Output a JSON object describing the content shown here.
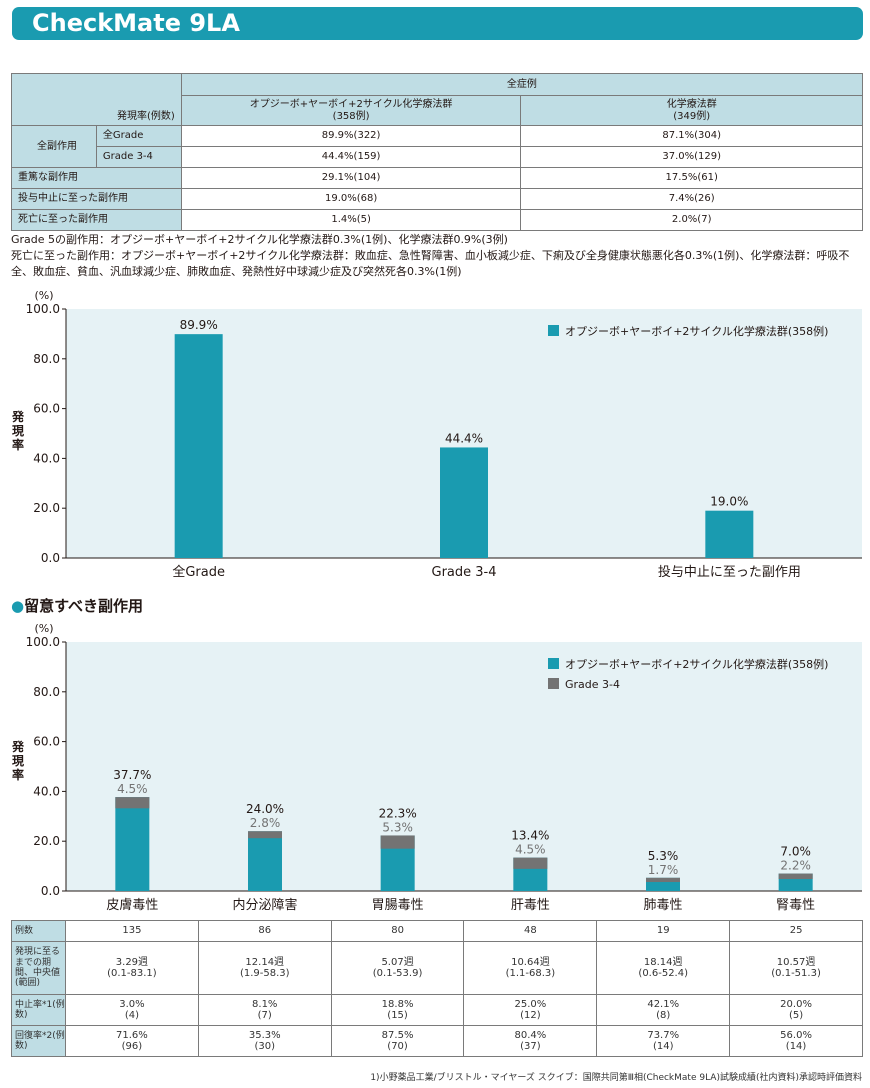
{
  "title": "CheckMate 9LA",
  "table1": {
    "header_group": "全症例",
    "header_rate": "発現率(例数)",
    "col1_name": "オプジーボ+ヤーボイ+2サイクル化学療法群",
    "col1_n": "(358例)",
    "col2_name": "化学療法群",
    "col2_n": "(349例)",
    "group_all": "全副作用",
    "rows": [
      {
        "label": "全Grade",
        "v1": "89.9%(322)",
        "v2": "87.1%(304)"
      },
      {
        "label": "Grade 3-4",
        "v1": "44.4%(159)",
        "v2": "37.0%(129)"
      },
      {
        "label": "重篤な副作用",
        "v1": "29.1%(104)",
        "v2": "17.5%(61)"
      },
      {
        "label": "投与中止に至った副作用",
        "v1": "19.0%(68)",
        "v2": "7.4%(26)"
      },
      {
        "label": "死亡に至った副作用",
        "v1": "1.4%(5)",
        "v2": "2.0%(7)"
      }
    ]
  },
  "notes": [
    "Grade 5の副作用：オプジーボ+ヤーボイ+2サイクル化学療法群0.3%(1例)、化学療法群0.9%(3例)",
    "死亡に至った副作用：オプジーボ+ヤーボイ+2サイクル化学療法群：敗血症、急性腎障害、血小板減少症、下痢及び全身健康状態悪化各0.3%(1例)、化学療法群：呼吸不全、敗血症、貧血、汎血球減少症、肺敗血症、発熱性好中球減少症及び突然死各0.3%(1例)"
  ],
  "section2_heading": "留意すべき副作用",
  "colors": {
    "accent": "#1a9bb0",
    "grade34": "#737373",
    "plot_bg": "#e6f2f5"
  },
  "chart_data": [
    {
      "type": "bar",
      "unit_label": "(%)",
      "ylabel": "発現率",
      "ylim": [
        0,
        100
      ],
      "yticks": [
        "0.0",
        "20.0",
        "40.0",
        "60.0",
        "80.0",
        "100.0"
      ],
      "categories": [
        "全Grade",
        "Grade 3-4",
        "投与中止に至った副作用"
      ],
      "series": [
        {
          "name": "オプジーボ+ヤーボイ+2サイクル化学療法群(358例)",
          "values": [
            89.9,
            44.4,
            19.0
          ],
          "labels": [
            "89.9%",
            "44.4%",
            "19.0%"
          ]
        }
      ],
      "legend": "top-right",
      "grid": false
    },
    {
      "type": "bar",
      "unit_label": "(%)",
      "ylabel": "発現率",
      "ylim": [
        0,
        100
      ],
      "yticks": [
        "0.0",
        "20.0",
        "40.0",
        "60.0",
        "80.0",
        "100.0"
      ],
      "categories": [
        "皮膚毒性",
        "内分泌障害",
        "胃腸毒性",
        "肝毒性",
        "肺毒性",
        "腎毒性"
      ],
      "series": [
        {
          "name": "オプジーボ+ヤーボイ+2サイクル化学療法群(358例)",
          "values": [
            37.7,
            24.0,
            22.3,
            13.4,
            5.3,
            7.0
          ],
          "labels": [
            "37.7%",
            "24.0%",
            "22.3%",
            "13.4%",
            "5.3%",
            "7.0%"
          ]
        },
        {
          "name": "Grade 3-4",
          "values": [
            4.5,
            2.8,
            5.3,
            4.5,
            1.7,
            2.2
          ],
          "labels": [
            "4.5%",
            "2.8%",
            "5.3%",
            "4.5%",
            "1.7%",
            "2.2%"
          ]
        }
      ],
      "legend": "top-right",
      "grid": false
    }
  ],
  "table2": {
    "rows": [
      {
        "label": "例数",
        "values": [
          "135",
          "86",
          "80",
          "48",
          "19",
          "25"
        ]
      },
      {
        "label": "発現に至るまでの期間、中央値(範囲)",
        "values": [
          [
            "3.29週",
            "(0.1-83.1)"
          ],
          [
            "12.14週",
            "(1.9-58.3)"
          ],
          [
            "5.07週",
            "(0.1-53.9)"
          ],
          [
            "10.64週",
            "(1.1-68.3)"
          ],
          [
            "18.14週",
            "(0.6-52.4)"
          ],
          [
            "10.57週",
            "(0.1-51.3)"
          ]
        ]
      },
      {
        "label": "中止率*1(例数)",
        "values": [
          [
            "3.0%",
            "(4)"
          ],
          [
            "8.1%",
            "(7)"
          ],
          [
            "18.8%",
            "(15)"
          ],
          [
            "25.0%",
            "(12)"
          ],
          [
            "42.1%",
            "(8)"
          ],
          [
            "20.0%",
            "(5)"
          ]
        ]
      },
      {
        "label": "回復率*2(例数)",
        "values": [
          [
            "71.6%",
            "(96)"
          ],
          [
            "35.3%",
            "(30)"
          ],
          [
            "87.5%",
            "(70)"
          ],
          [
            "80.4%",
            "(37)"
          ],
          [
            "73.7%",
            "(14)"
          ],
          [
            "56.0%",
            "(14)"
          ]
        ]
      }
    ]
  },
  "footer": "1)小野薬品工業/ブリストル・マイヤーズ スクイブ：国際共同第Ⅲ相(CheckMate 9LA)試験成績(社内資料)承認時評価資料"
}
